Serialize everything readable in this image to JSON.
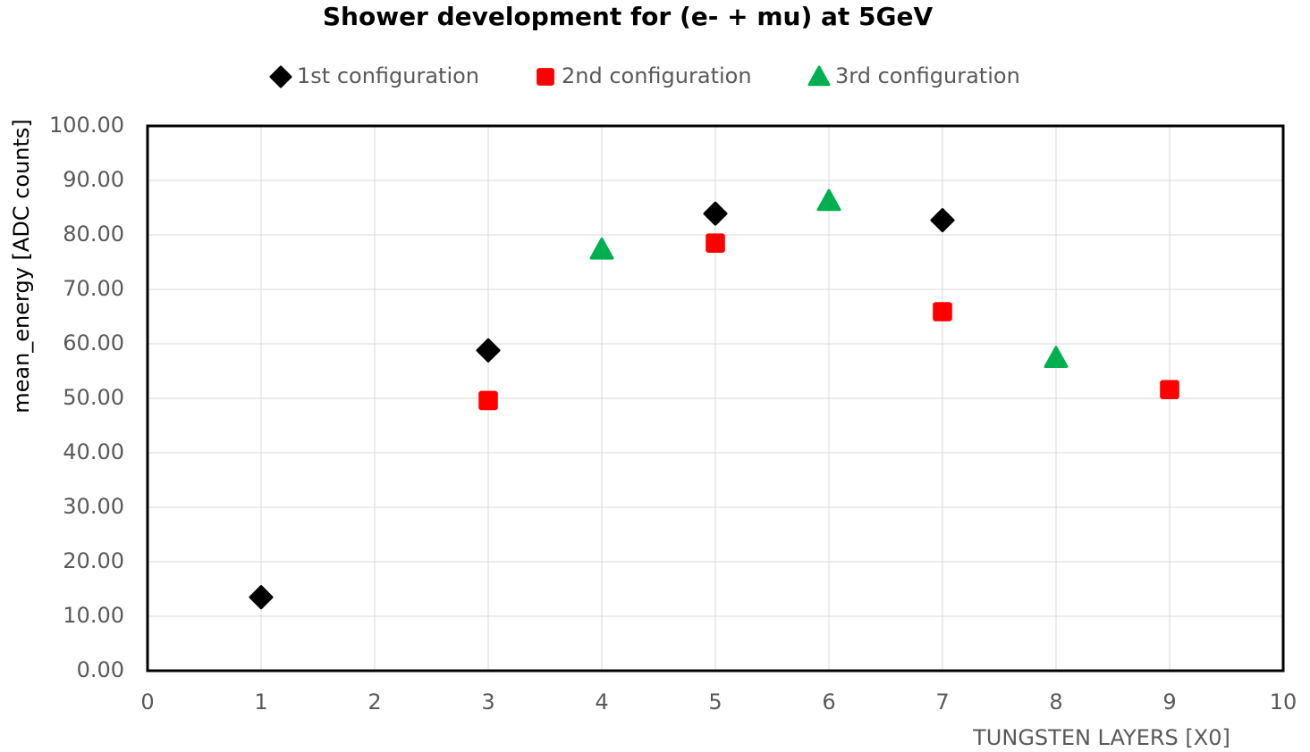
{
  "chart_data": {
    "type": "scatter",
    "title": "Shower development for (e- + mu) at 5GeV",
    "x_label": "TUNGSTEN LAYERS [X0]",
    "y_label": "mean_energy  [ADC counts]",
    "xlim": [
      0,
      10
    ],
    "xticks": [
      0,
      1,
      2,
      3,
      4,
      5,
      6,
      7,
      8,
      9,
      10
    ],
    "ylim": [
      0,
      100
    ],
    "yticks": [
      {
        "value": 0,
        "label": "0.00"
      },
      {
        "value": 10,
        "label": "10.00"
      },
      {
        "value": 20,
        "label": "20.00"
      },
      {
        "value": 30,
        "label": "30.00"
      },
      {
        "value": 40,
        "label": "40.00"
      },
      {
        "value": 50,
        "label": "50.00"
      },
      {
        "value": 60,
        "label": "60.00"
      },
      {
        "value": 70,
        "label": "70.00"
      },
      {
        "value": 80,
        "label": "80.00"
      },
      {
        "value": 90,
        "label": "90.00"
      },
      {
        "value": 100,
        "label": "100.00"
      }
    ],
    "grid": true,
    "legend": "top",
    "series": [
      {
        "name": "1st configuration",
        "color": "#000000",
        "marker": "diamond",
        "x": [
          1,
          3,
          5,
          7
        ],
        "values": [
          13.5,
          58.8,
          83.9,
          82.7
        ]
      },
      {
        "name": "2nd configuration",
        "color": "#ff0000",
        "marker": "square",
        "x": [
          3,
          5,
          7,
          9
        ],
        "values": [
          49.6,
          78.5,
          65.9,
          51.6
        ]
      },
      {
        "name": "3rd configuration",
        "color": "#00b050",
        "marker": "triangle",
        "x": [
          4,
          6,
          8
        ],
        "values": [
          77.3,
          86.2,
          57.4
        ]
      }
    ]
  }
}
